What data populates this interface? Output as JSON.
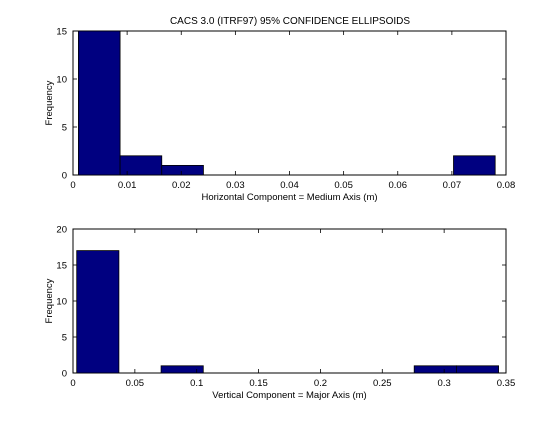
{
  "title": "CACS 3.0 (ITRF97) 95% CONFIDENCE ELLIPSOIDS",
  "chart_data": [
    {
      "type": "bar",
      "title": "CACS 3.0 (ITRF97) 95% CONFIDENCE ELLIPSOIDS",
      "xlabel": "Horizontal Component = Medium Axis (m)",
      "ylabel": "Frequency",
      "xlim": [
        0,
        0.08
      ],
      "ylim": [
        0,
        15
      ],
      "xticks": [
        "0",
        "0.01",
        "0.02",
        "0.03",
        "0.04",
        "0.05",
        "0.06",
        "0.07",
        "0.08"
      ],
      "yticks": [
        "0",
        "5",
        "10",
        "15"
      ],
      "bin_edges": [
        0.001,
        0.0087,
        0.0164,
        0.0241,
        0.0318,
        0.0395,
        0.0472,
        0.0549,
        0.0626,
        0.0703,
        0.078
      ],
      "values": [
        15,
        2,
        1,
        0,
        0,
        0,
        0,
        0,
        0,
        2
      ],
      "bar_color": "#000080",
      "grid": false
    },
    {
      "type": "bar",
      "title": "",
      "xlabel": "Vertical Component = Major Axis (m)",
      "ylabel": "Frequency",
      "xlim": [
        0,
        0.35
      ],
      "ylim": [
        0,
        20
      ],
      "xticks": [
        "0",
        "0.05",
        "0.1",
        "0.15",
        "0.2",
        "0.25",
        "0.3",
        "0.35"
      ],
      "yticks": [
        "0",
        "5",
        "10",
        "15",
        "20"
      ],
      "bin_edges": [
        0.003,
        0.0371,
        0.0712,
        0.1053,
        0.1394,
        0.1735,
        0.2076,
        0.2417,
        0.2758,
        0.3099,
        0.344
      ],
      "values": [
        17,
        0,
        1,
        0,
        0,
        0,
        0,
        0,
        1,
        1
      ],
      "bar_color": "#000080",
      "grid": false
    }
  ]
}
